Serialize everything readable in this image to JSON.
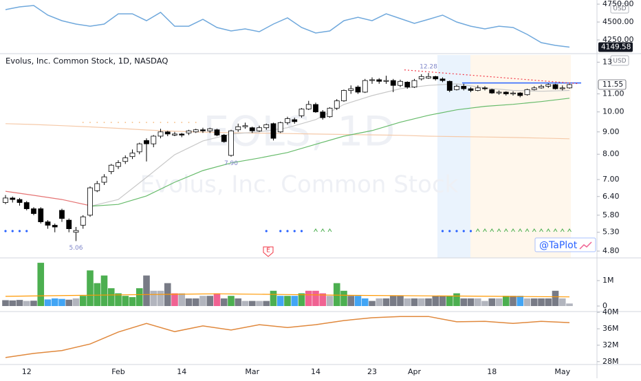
{
  "chart_data": [
    {
      "type": "line",
      "currency": "USD",
      "color": "#6fa8dc",
      "x": [
        0,
        2,
        4,
        6,
        8,
        10,
        12,
        14,
        16,
        18,
        20,
        22,
        24,
        26,
        28,
        30,
        32,
        34,
        36,
        38,
        40,
        42,
        44,
        46,
        48,
        50,
        52,
        54,
        56,
        58,
        60,
        62,
        64,
        66,
        68,
        70,
        72,
        74,
        76,
        78,
        80
      ],
      "values": [
        4673,
        4712,
        4731,
        4596,
        4519,
        4471,
        4442,
        4471,
        4615,
        4615,
        4519,
        4635,
        4442,
        4442,
        4538,
        4423,
        4375,
        4404,
        4365,
        4471,
        4558,
        4423,
        4346,
        4375,
        4519,
        4567,
        4519,
        4615,
        4548,
        4481,
        4538,
        4596,
        4500,
        4442,
        4404,
        4442,
        4423,
        4327,
        4212,
        4173,
        4149.58
      ],
      "ylim": [
        4058,
        4808
      ],
      "yticks": [
        {
          "value": 4750,
          "label": "4750.00"
        },
        {
          "value": 4500,
          "label": "4500.00"
        },
        {
          "value": 4250,
          "label": "4250.00"
        }
      ]
    },
    {
      "type": "candlestick",
      "title": "Evolus, Inc. Common Stock, 1D, NASDAQ",
      "currency": "USD",
      "watermark": [
        "EOLS, 1D",
        "Evolus, Inc. Common Stock"
      ],
      "credit": "@TaPlot",
      "earnings_marker": "E",
      "log_scale": true,
      "up_color": "#ffffff",
      "down_color": "#000000",
      "categories": [
        null,
        null,
        null,
        "12",
        null,
        null,
        null,
        null,
        null,
        null,
        null,
        null,
        null,
        null,
        null,
        null,
        "Feb",
        null,
        null,
        null,
        null,
        null,
        null,
        null,
        null,
        "14",
        null,
        null,
        null,
        null,
        null,
        null,
        null,
        null,
        null,
        "Mar",
        null,
        null,
        null,
        null,
        null,
        null,
        null,
        null,
        "14",
        null,
        null,
        null,
        null,
        null,
        null,
        null,
        "23",
        null,
        null,
        null,
        null,
        null,
        "Apr",
        null,
        null,
        null,
        null,
        null,
        null,
        null,
        null,
        null,
        null,
        "18",
        null,
        null,
        null,
        null,
        null,
        null,
        null,
        null,
        null,
        "May",
        null
      ],
      "open": [
        6.2,
        6.35,
        6.3,
        6.2,
        6.0,
        6.0,
        5.6,
        5.5,
        5.95,
        5.65,
        5.3,
        5.5,
        5.8,
        6.6,
        6.9,
        7.3,
        7.5,
        7.7,
        7.9,
        8.1,
        8.6,
        8.45,
        8.8,
        9.0,
        8.85,
        8.9,
        8.95,
        9.0,
        9.1,
        9.05,
        9.1,
        8.85,
        7.95,
        9.1,
        9.25,
        9.2,
        9.05,
        9.2,
        9.4,
        9.0,
        9.45,
        9.6,
        9.8,
        10.15,
        10.4,
        10.0,
        9.75,
        10.2,
        10.6,
        11.2,
        11.4,
        11.1,
        11.8,
        11.85,
        11.75,
        11.8,
        11.5,
        11.7,
        11.4,
        11.9,
        11.95,
        12.05,
        11.9,
        11.75,
        11.25,
        11.45,
        11.3,
        11.2,
        11.35,
        11.25,
        11.05,
        11.1,
        11.0,
        11.05,
        10.95,
        11.25,
        11.35,
        11.45,
        11.55,
        11.3,
        11.35
      ],
      "high": [
        6.45,
        6.4,
        6.35,
        6.25,
        6.05,
        6.05,
        5.65,
        5.55,
        6.0,
        5.7,
        5.45,
        5.8,
        6.75,
        6.95,
        7.2,
        7.6,
        7.75,
        7.95,
        8.2,
        8.5,
        8.7,
        8.85,
        9.15,
        9.05,
        9.0,
        8.95,
        9.1,
        9.15,
        9.2,
        9.2,
        9.15,
        8.9,
        9.1,
        9.4,
        9.45,
        9.25,
        9.3,
        9.4,
        9.45,
        9.5,
        9.75,
        9.7,
        10.2,
        10.6,
        10.5,
        10.1,
        10.25,
        10.7,
        11.25,
        11.5,
        11.5,
        11.9,
        12.0,
        11.95,
        12.1,
        11.9,
        11.85,
        11.75,
        11.9,
        12.2,
        12.28,
        12.1,
        12.0,
        11.8,
        11.55,
        11.6,
        11.4,
        11.5,
        11.45,
        11.3,
        11.2,
        11.15,
        11.15,
        11.1,
        11.3,
        11.45,
        11.55,
        11.65,
        11.6,
        11.5,
        11.6
      ],
      "low": [
        6.15,
        6.2,
        6.1,
        5.95,
        5.8,
        5.55,
        5.4,
        5.3,
        5.6,
        5.3,
        5.06,
        5.4,
        5.75,
        6.55,
        6.8,
        7.2,
        7.4,
        7.6,
        7.8,
        8.0,
        7.7,
        8.3,
        8.7,
        8.8,
        8.8,
        8.75,
        8.85,
        8.95,
        8.95,
        8.95,
        8.8,
        8.5,
        7.9,
        9.0,
        9.15,
        8.95,
        9.0,
        9.1,
        8.6,
        8.95,
        9.35,
        9.4,
        9.7,
        10.1,
        9.95,
        9.6,
        9.7,
        10.1,
        10.55,
        11.0,
        11.0,
        11.05,
        11.6,
        11.6,
        11.6,
        11.1,
        11.4,
        11.3,
        11.35,
        11.8,
        11.9,
        11.8,
        11.7,
        11.1,
        11.2,
        11.2,
        11.1,
        11.15,
        11.2,
        11.0,
        10.95,
        10.9,
        10.9,
        10.8,
        10.9,
        11.2,
        11.3,
        11.35,
        11.25,
        11.2,
        11.3
      ],
      "close": [
        6.35,
        6.3,
        6.2,
        6.0,
        5.85,
        5.6,
        5.5,
        5.45,
        5.7,
        5.4,
        5.35,
        5.75,
        6.7,
        6.85,
        7.1,
        7.55,
        7.65,
        7.85,
        8.05,
        8.45,
        8.45,
        8.8,
        9.0,
        8.9,
        8.9,
        8.85,
        9.05,
        9.1,
        9.05,
        9.15,
        8.85,
        8.55,
        9.05,
        9.25,
        9.3,
        9.05,
        9.2,
        9.35,
        8.7,
        9.45,
        9.65,
        9.5,
        10.15,
        10.4,
        10.0,
        9.7,
        10.2,
        10.6,
        11.2,
        11.3,
        11.1,
        11.8,
        11.85,
        11.75,
        11.8,
        11.5,
        11.75,
        11.4,
        11.8,
        12.05,
        12.05,
        11.9,
        11.8,
        11.2,
        11.45,
        11.3,
        11.2,
        11.35,
        11.3,
        11.05,
        11.1,
        11.0,
        11.05,
        10.9,
        11.25,
        11.35,
        11.45,
        11.55,
        11.3,
        11.35,
        11.55
      ],
      "annotations": [
        {
          "text": "12.28",
          "value": 12.28
        },
        {
          "text": "7.90",
          "value": 7.9
        },
        {
          "text": "5.06",
          "value": 5.06
        }
      ],
      "moving_averages": {
        "x": [
          0,
          4,
          8,
          12,
          16,
          20,
          24,
          28,
          32,
          36,
          40,
          44,
          48,
          52,
          56,
          60,
          64,
          68,
          72,
          76,
          80
        ],
        "series": [
          {
            "color": "#f5c9a8",
            "values": [
              9.4,
              9.36,
              9.3,
              9.24,
              9.17,
              9.09,
              9.03,
              8.99,
              8.96,
              8.94,
              8.92,
              8.9,
              8.88,
              8.86,
              8.84,
              8.8,
              8.78,
              8.76,
              8.74,
              8.71,
              8.68
            ]
          },
          {
            "color": "#e57373",
            "values": [
              6.58,
              6.44,
              6.3,
              6.1,
              null,
              null,
              null,
              null,
              null,
              null,
              null,
              null,
              null,
              null,
              null,
              null,
              null,
              null,
              null,
              null,
              null
            ]
          },
          {
            "color": "#c8c8c8",
            "values": [
              null,
              null,
              null,
              6.08,
              6.3,
              7.08,
              7.98,
              8.58,
              8.9,
              9.0,
              9.2,
              9.6,
              10.4,
              10.9,
              11.3,
              11.5,
              11.6,
              11.35,
              11.2,
              11.15,
              11.2
            ]
          },
          {
            "color": "#66bb6a",
            "values": [
              null,
              null,
              null,
              6.08,
              6.14,
              6.42,
              6.9,
              7.34,
              7.64,
              7.84,
              8.07,
              8.43,
              8.8,
              9.06,
              9.47,
              9.82,
              10.11,
              10.3,
              10.41,
              10.56,
              10.75
            ]
          }
        ]
      },
      "level": {
        "value": 11.65,
        "color": "#2962ff"
      },
      "trendline": {
        "from": 12.48,
        "to": 11.61,
        "color": "#f23645"
      },
      "ylim": [
        4.63,
        13.5
      ],
      "yticks": [
        13,
        {
          "value": 11,
          "label": "11.00"
        },
        {
          "value": 10,
          "label": "10.00"
        },
        {
          "value": 9,
          "label": "9.00"
        },
        {
          "value": 8,
          "label": "8.00"
        },
        {
          "value": 7,
          "label": "7.00"
        },
        {
          "value": 6.4,
          "label": "6.40"
        },
        {
          "value": 5.8,
          "label": "5.80"
        },
        {
          "value": 5.3,
          "label": "5.30"
        },
        {
          "value": 4.8,
          "label": "4.80"
        }
      ]
    },
    {
      "type": "bar",
      "values": [
        230000,
        220000,
        240000,
        200000,
        210000,
        1700000,
        260000,
        300000,
        280000,
        250000,
        300000,
        400000,
        1400000,
        900000,
        1200000,
        700000,
        500000,
        400000,
        350000,
        700000,
        1200000,
        600000,
        600000,
        900000,
        500000,
        500000,
        300000,
        300000,
        400000,
        400000,
        500000,
        300000,
        400000,
        300000,
        200000,
        200000,
        200000,
        200000,
        600000,
        400000,
        400000,
        400000,
        500000,
        600000,
        600000,
        500000,
        400000,
        900000,
        600000,
        400000,
        400000,
        300000,
        200000,
        300000,
        300000,
        400000,
        400000,
        300000,
        300000,
        300000,
        300000,
        400000,
        400000,
        400000,
        500000,
        300000,
        300000,
        300000,
        200000,
        300000,
        300000,
        400000,
        400000,
        400000,
        300000,
        300000,
        300000,
        300000,
        600000,
        300000,
        100000
      ],
      "colors": [
        "#787b86",
        "#787b86",
        "#787b86",
        "#b2b5be",
        "#787b86",
        "#4caf50",
        "#42a5f5",
        "#42a5f5",
        "#42a5f5",
        "#787b86",
        "#b2b5be",
        "#4caf50",
        "#4caf50",
        "#4caf50",
        "#4caf50",
        "#4caf50",
        "#4caf50",
        "#4caf50",
        "#4caf50",
        "#4caf50",
        "#787b86",
        "#b2b5be",
        "#b2b5be",
        "#787b86",
        "#f06292",
        "#b2b5be",
        "#787b86",
        "#787b86",
        "#b2b5be",
        "#787b86",
        "#f06292",
        "#787b86",
        "#4caf50",
        "#787b86",
        "#b2b5be",
        "#787b86",
        "#b2b5be",
        "#787b86",
        "#4caf50",
        "#42a5f5",
        "#4caf50",
        "#42a5f5",
        "#4caf50",
        "#f06292",
        "#f06292",
        "#f06292",
        "#b2b5be",
        "#4caf50",
        "#4caf50",
        "#787b86",
        "#42a5f5",
        "#42a5f5",
        "#787b86",
        "#b2b5be",
        "#787b86",
        "#787b86",
        "#787b86",
        "#b2b5be",
        "#787b86",
        "#b2b5be",
        "#787b86",
        "#787b86",
        "#787b86",
        "#4caf50",
        "#4caf50",
        "#787b86",
        "#787b86",
        "#b2b5be",
        "#b2b5be",
        "#787b86",
        "#b2b5be",
        "#4caf50",
        "#787b86",
        "#42a5f5",
        "#b2b5be",
        "#787b86",
        "#787b86",
        "#787b86",
        "#787b86",
        "#b2b5be",
        "#b2b5be"
      ],
      "average": {
        "color": "#ff9800",
        "x": [
          0,
          10,
          20,
          30,
          40,
          50,
          60,
          70,
          80
        ],
        "values": [
          380000,
          420000,
          450000,
          480000,
          450000,
          420000,
          400000,
          380000,
          360000
        ]
      },
      "ylim": [
        -200000,
        1800000
      ],
      "yticks": [
        {
          "value": 1000000,
          "label": "1M"
        },
        0
      ]
    },
    {
      "type": "line",
      "color": "#e0883c",
      "x": [
        0,
        4,
        8,
        12,
        16,
        20,
        24,
        28,
        32,
        36,
        40,
        44,
        48,
        52,
        56,
        60,
        64,
        68,
        72,
        76,
        80
      ],
      "values": [
        29000000,
        30000000,
        30700000,
        32300000,
        35200000,
        37300000,
        35300000,
        36700000,
        35700000,
        37000000,
        36300000,
        37000000,
        38000000,
        38700000,
        39000000,
        39000000,
        37700000,
        37800000,
        37300000,
        37800000,
        37500000
      ],
      "ylim": [
        27300000,
        40200000
      ],
      "yticks": [
        {
          "value": 40000000,
          "label": "40M"
        },
        {
          "value": 36000000,
          "label": "36M"
        },
        {
          "value": 32000000,
          "label": "32M"
        },
        {
          "value": 28000000,
          "label": "28M"
        }
      ]
    }
  ]
}
